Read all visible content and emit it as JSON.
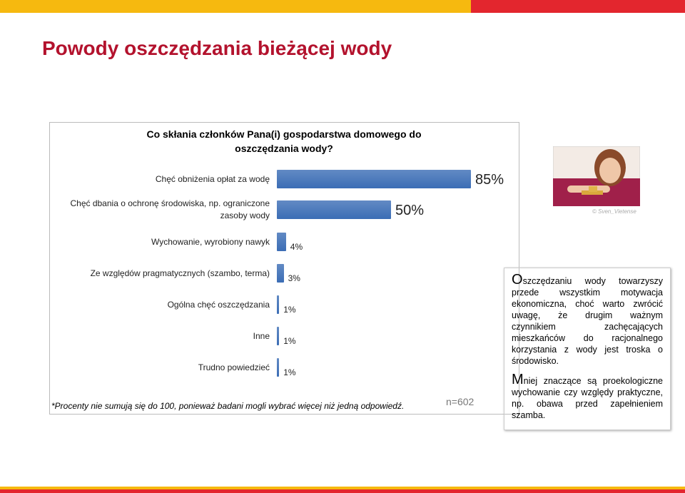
{
  "title": "Powody oszczędzania bieżącej wody",
  "chart_data": {
    "type": "bar",
    "orientation": "horizontal",
    "title": "Co skłania członków Pana(i) gospodarstwa domowego do oszczędzania wody?",
    "categories": [
      "Chęć obniżenia opłat za wodę",
      "Chęć dbania o ochronę środowiska, np. ograniczone zasoby wody",
      "Wychowanie, wyrobiony nawyk",
      "Ze względów pragmatycznych (szambo, terma)",
      "Ogólna chęć oszczędzania",
      "Inne",
      "Trudno powiedzieć"
    ],
    "values": [
      85,
      50,
      4,
      3,
      1,
      1,
      1
    ],
    "value_labels": [
      "85%",
      "50%",
      "4%",
      "3%",
      "1%",
      "1%",
      "1%"
    ],
    "color": "#3b6db5",
    "footnote": "*Procenty nie sumują się do 100, ponieważ badani mogli wybrać więcej niż jedną odpowiedź.",
    "sample": "n=602"
  },
  "photo_credit": "© Sven_Vietense",
  "notes": [
    "Oszczędzaniu wody towarzyszy przede wszystkim motywacja ekonomiczna, choć warto zwrócić uwagę, że drugim ważnym czynnikiem zachęcających mieszkańców do racjonalnego korzystania z wody jest troska o środowisko.",
    "Mniej znaczące są proekologiczne wychowanie czy względy praktyczne, np. obawa przed zapełnieniem szamba."
  ]
}
